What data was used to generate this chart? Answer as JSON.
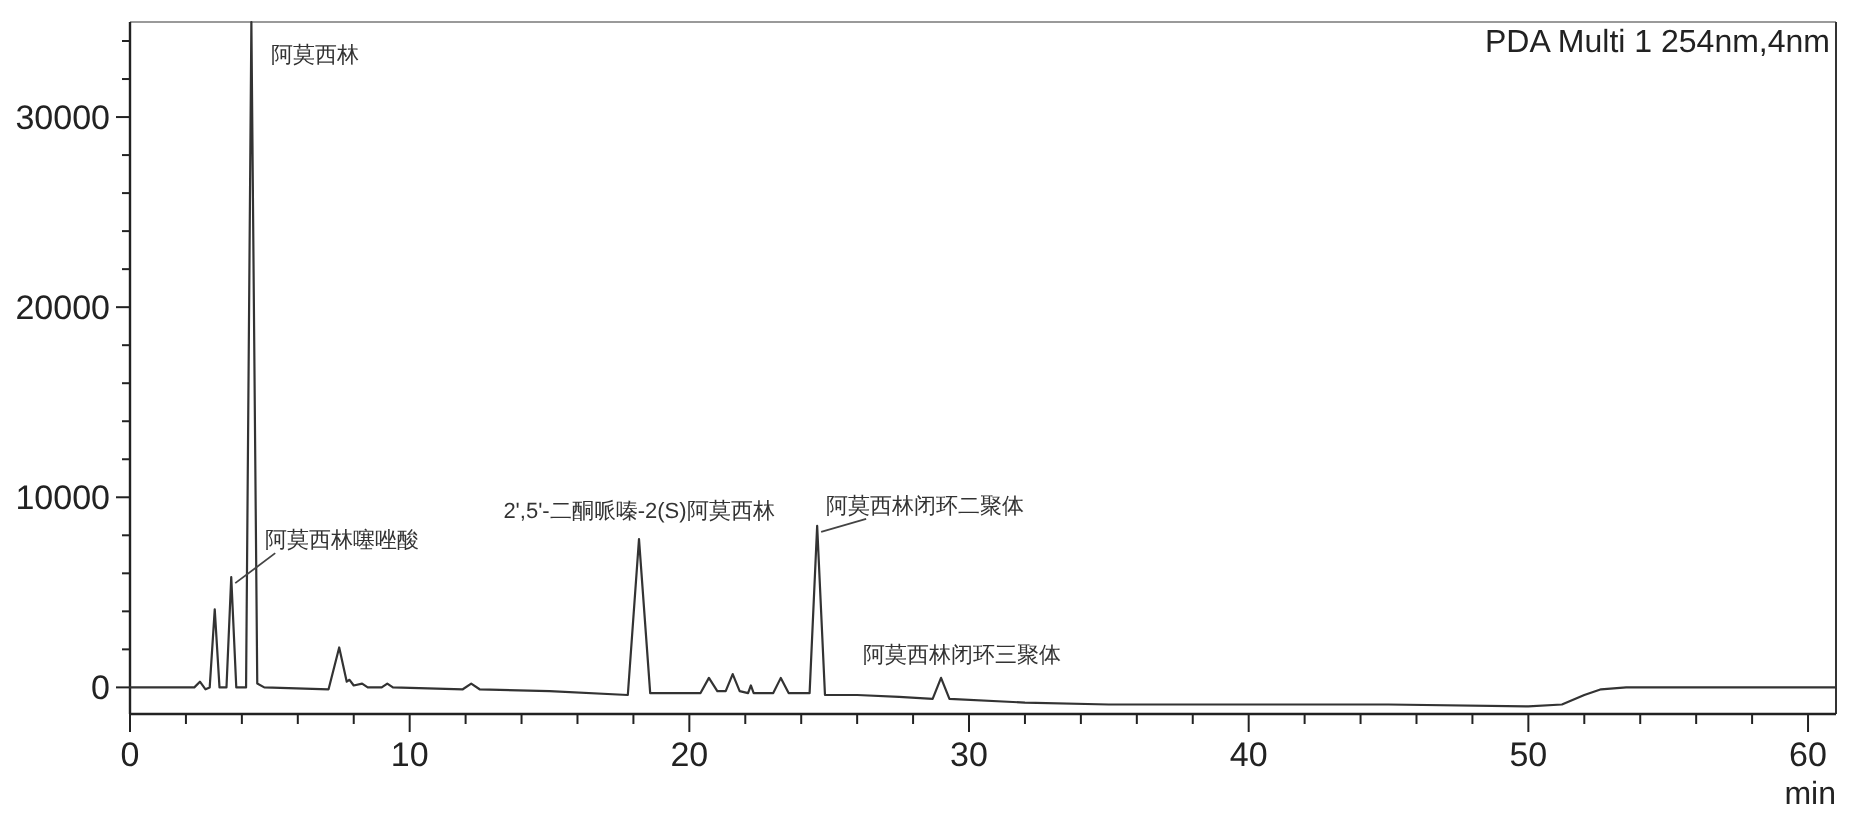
{
  "chart_data": {
    "type": "line",
    "title": "PDA Multi 1 254nm,4nm",
    "xlabel": "min",
    "x": [
      0,
      2.3,
      2.5,
      2.7,
      2.85,
      3.03,
      3.2,
      3.45,
      3.62,
      3.8,
      4.15,
      4.34,
      4.55,
      4.8,
      7.1,
      7.48,
      7.75,
      7.85,
      8.0,
      8.3,
      8.5,
      9.0,
      9.2,
      9.4,
      11.9,
      12.2,
      12.5,
      15,
      17.8,
      18.2,
      18.6,
      20.4,
      20.7,
      21.0,
      21.3,
      21.55,
      21.8,
      22.1,
      22.2,
      22.3,
      23.0,
      23.27,
      23.55,
      24.3,
      24.57,
      24.85,
      26,
      27.5,
      28.7,
      29.0,
      29.3,
      32,
      35,
      40,
      45,
      50,
      51.2,
      52,
      52.6,
      53.5,
      61
    ],
    "series": [
      {
        "color": "#333333",
        "values": [
          0,
          0,
          300,
          -100,
          0,
          4100,
          0,
          0,
          5800,
          0,
          0,
          35000,
          200,
          0,
          -100,
          2100,
          300,
          400,
          100,
          200,
          0,
          0,
          200,
          0,
          -100,
          200,
          -100,
          -200,
          -400,
          7800,
          -300,
          -300,
          500,
          -200,
          -200,
          700,
          -200,
          -300,
          100,
          -300,
          -300,
          500,
          -300,
          -300,
          8500,
          -400,
          -400,
          -500,
          -600,
          500,
          -600,
          -800,
          -900,
          -900,
          -900,
          -1000,
          -900,
          -400,
          -100,
          0,
          0
        ]
      }
    ],
    "xlim": [
      0,
      61
    ],
    "ylim": [
      -1400,
      35000
    ],
    "xticks": [
      0,
      {
        "value": 2,
        "label": null
      },
      {
        "value": 4,
        "label": null
      },
      {
        "value": 6,
        "label": null
      },
      {
        "value": 8,
        "label": null
      },
      10,
      {
        "value": 12,
        "label": null
      },
      {
        "value": 14,
        "label": null
      },
      {
        "value": 16,
        "label": null
      },
      {
        "value": 18,
        "label": null
      },
      20,
      {
        "value": 22,
        "label": null
      },
      {
        "value": 24,
        "label": null
      },
      {
        "value": 26,
        "label": null
      },
      {
        "value": 28,
        "label": null
      },
      30,
      {
        "value": 32,
        "label": null
      },
      {
        "value": 34,
        "label": null
      },
      {
        "value": 36,
        "label": null
      },
      {
        "value": 38,
        "label": null
      },
      40,
      {
        "value": 42,
        "label": null
      },
      {
        "value": 44,
        "label": null
      },
      {
        "value": 46,
        "label": null
      },
      {
        "value": 48,
        "label": null
      },
      50,
      {
        "value": 52,
        "label": null
      },
      {
        "value": 54,
        "label": null
      },
      {
        "value": 56,
        "label": null
      },
      {
        "value": 58,
        "label": null
      },
      60
    ],
    "yticks": [
      0,
      {
        "value": 2000,
        "label": null
      },
      {
        "value": 4000,
        "label": null
      },
      {
        "value": 6000,
        "label": null
      },
      {
        "value": 8000,
        "label": null
      },
      10000,
      {
        "value": 12000,
        "label": null
      },
      {
        "value": 14000,
        "label": null
      },
      {
        "value": 16000,
        "label": null
      },
      {
        "value": 18000,
        "label": null
      },
      20000,
      {
        "value": 22000,
        "label": null
      },
      {
        "value": 24000,
        "label": null
      },
      {
        "value": 26000,
        "label": null
      },
      {
        "value": 28000,
        "label": null
      },
      30000,
      {
        "value": 32000,
        "label": null
      },
      {
        "value": 34000,
        "label": null
      }
    ],
    "annotations": [
      {
        "text": "阿莫西林",
        "x": 4.34,
        "y": 35000
      },
      {
        "text": "阿莫西林噻唑酸",
        "x": 3.62,
        "y": 5800
      },
      {
        "text": "2',5'-二酮哌嗪-2(S)阿莫西林",
        "x": 18.2,
        "y": 7800
      },
      {
        "text": "阿莫西林闭环二聚体",
        "x": 24.57,
        "y": 8500
      },
      {
        "text": "阿莫西林闭环三聚体",
        "x": 29.0,
        "y": 500
      }
    ]
  }
}
